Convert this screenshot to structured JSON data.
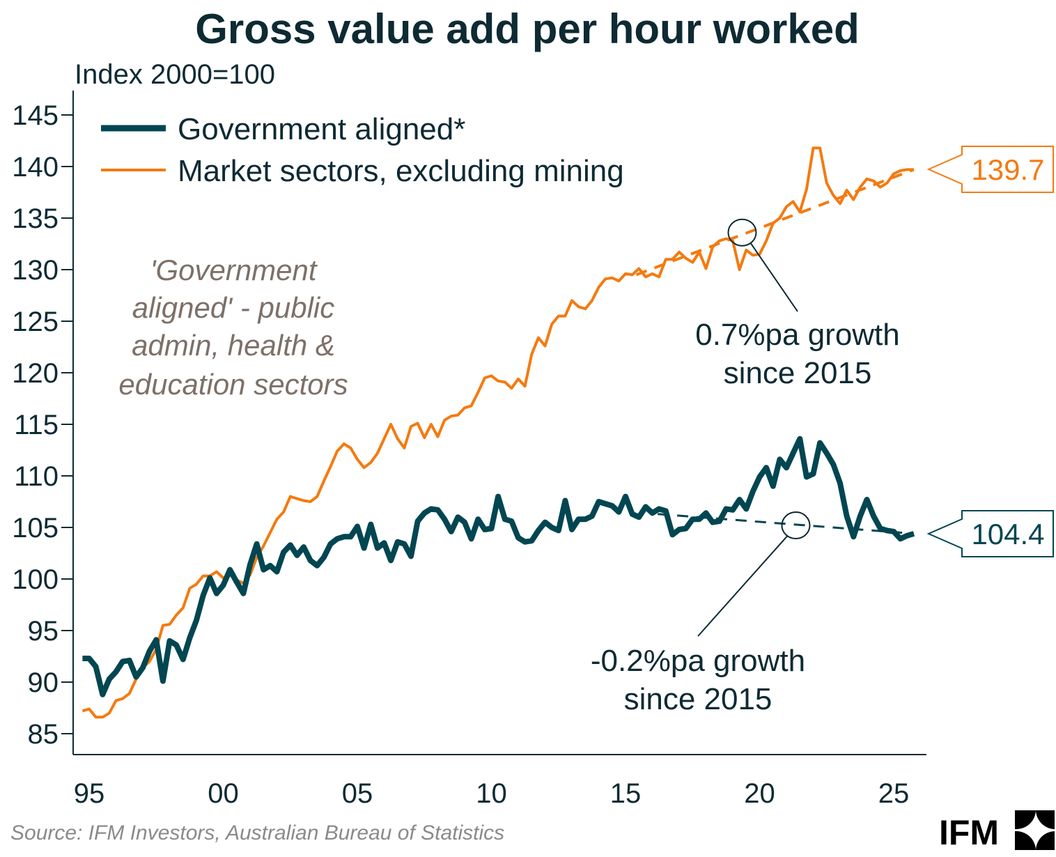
{
  "chart_data": {
    "type": "line",
    "title": "Gross value add per hour worked",
    "ylabel": "Index 2000=100",
    "ylim": [
      85,
      145
    ],
    "yticks": [
      85,
      90,
      95,
      100,
      105,
      110,
      115,
      120,
      125,
      130,
      135,
      140,
      145
    ],
    "xlim": [
      1994.5,
      2026.2
    ],
    "xticks": [
      1995,
      2000,
      2005,
      2010,
      2015,
      2020,
      2025
    ],
    "xtick_labels": [
      "95",
      "00",
      "05",
      "10",
      "15",
      "20",
      "25"
    ],
    "grid": false,
    "legend_position": "top-left",
    "colors": {
      "government": "#014651",
      "market": "#f47a10",
      "note": "#7d7068"
    },
    "x": [
      1994.75,
      1995,
      1995.25,
      1995.5,
      1995.75,
      1996,
      1996.25,
      1996.5,
      1996.75,
      1997,
      1997.25,
      1997.5,
      1997.75,
      1998,
      1998.25,
      1998.5,
      1998.75,
      1999,
      1999.25,
      1999.5,
      1999.75,
      2000,
      2000.25,
      2000.5,
      2000.75,
      2001,
      2001.25,
      2001.5,
      2001.75,
      2002,
      2002.25,
      2002.5,
      2002.75,
      2003,
      2003.25,
      2003.5,
      2003.75,
      2004,
      2004.25,
      2004.5,
      2004.75,
      2005,
      2005.25,
      2005.5,
      2005.75,
      2006,
      2006.25,
      2006.5,
      2006.75,
      2007,
      2007.25,
      2007.5,
      2007.75,
      2008,
      2008.25,
      2008.5,
      2008.75,
      2009,
      2009.25,
      2009.5,
      2009.75,
      2010,
      2010.25,
      2010.5,
      2010.75,
      2011,
      2011.25,
      2011.5,
      2011.75,
      2012,
      2012.25,
      2012.5,
      2012.75,
      2013,
      2013.25,
      2013.5,
      2013.75,
      2014,
      2014.25,
      2014.5,
      2014.75,
      2015,
      2015.25,
      2015.5,
      2015.75,
      2016,
      2016.25,
      2016.5,
      2016.75,
      2017,
      2017.25,
      2017.5,
      2017.75,
      2018,
      2018.25,
      2018.5,
      2018.75,
      2019,
      2019.25,
      2019.5,
      2019.75,
      2020,
      2020.25,
      2020.5,
      2020.75,
      2021,
      2021.25,
      2021.5,
      2021.75,
      2022,
      2022.25,
      2022.5,
      2022.75,
      2023,
      2023.25,
      2023.5,
      2023.75,
      2024,
      2024.25,
      2024.5,
      2024.75,
      2025,
      2025.25,
      2025.5,
      2025.75
    ],
    "series": [
      {
        "name": "Government aligned*",
        "key": "government",
        "values": [
          92.3,
          92.3,
          91.5,
          88.8,
          90.3,
          91.0,
          92.0,
          92.1,
          90.5,
          91.4,
          93.0,
          94.1,
          90.1,
          94.0,
          93.6,
          92.2,
          94.3,
          96.0,
          98.4,
          100.1,
          98.6,
          99.4,
          100.9,
          99.7,
          98.6,
          101.4,
          103.4,
          100.9,
          101.3,
          100.7,
          102.6,
          103.3,
          102.3,
          103.1,
          101.8,
          101.3,
          102.1,
          103.4,
          103.9,
          104.1,
          104.1,
          105.1,
          103.0,
          105.3,
          103.0,
          103.5,
          101.8,
          103.6,
          103.4,
          102.2,
          105.6,
          106.4,
          106.8,
          106.7,
          105.8,
          104.6,
          106.0,
          105.5,
          103.9,
          105.8,
          104.8,
          104.9,
          108.0,
          105.8,
          105.6,
          104.0,
          103.6,
          103.7,
          104.7,
          105.5,
          105.0,
          104.7,
          107.6,
          104.8,
          105.8,
          105.8,
          106.1,
          107.5,
          107.3,
          107.1,
          106.5,
          108.0,
          106.3,
          106.0,
          107.0,
          106.4,
          106.8,
          106.6,
          104.3,
          104.8,
          104.9,
          105.8,
          105.8,
          106.4,
          105.5,
          105.6,
          106.8,
          106.7,
          107.7,
          106.8,
          108.5,
          109.9,
          110.8,
          109.0,
          111.6,
          110.8,
          112.2,
          113.6,
          109.9,
          110.2,
          113.2,
          112.2,
          111.1,
          109.3,
          106.1,
          104.1,
          106.1,
          107.7,
          106.1,
          104.9,
          104.7,
          104.6,
          103.9,
          104.2,
          104.4
        ]
      },
      {
        "name": "Market sectors, excluding mining",
        "key": "market",
        "values": [
          87.2,
          87.4,
          86.6,
          86.6,
          87.0,
          88.2,
          88.4,
          88.9,
          90.3,
          91.4,
          92.0,
          93.2,
          95.5,
          95.6,
          96.5,
          97.2,
          99.1,
          99.5,
          100.3,
          100.3,
          100.7,
          100.1,
          100.4,
          99.9,
          99.6,
          100.4,
          102.1,
          103.2,
          104.5,
          105.8,
          106.5,
          108.0,
          107.8,
          107.6,
          107.5,
          108.0,
          109.5,
          110.9,
          112.4,
          113.1,
          112.7,
          111.6,
          110.8,
          111.3,
          112.2,
          113.6,
          115.0,
          113.6,
          112.7,
          114.8,
          115.1,
          113.7,
          115.0,
          113.8,
          115.4,
          115.8,
          115.9,
          116.6,
          116.8,
          118.1,
          119.5,
          119.7,
          119.2,
          119.1,
          118.5,
          119.4,
          118.7,
          121.8,
          123.4,
          122.6,
          124.7,
          125.5,
          125.5,
          127.0,
          126.4,
          126.2,
          127.0,
          128.3,
          129.1,
          129.2,
          128.9,
          129.6,
          129.5,
          130.1,
          129.3,
          129.6,
          129.3,
          131.0,
          131.0,
          131.7,
          131.1,
          130.7,
          131.7,
          130.1,
          132.2,
          132.8,
          133.0,
          132.8,
          130.0,
          131.9,
          131.4,
          131.5,
          132.8,
          134.5,
          135.0,
          136.1,
          136.6,
          135.6,
          137.8,
          141.8,
          141.8,
          138.4,
          137.2,
          136.4,
          137.7,
          136.8,
          138.0,
          138.8,
          138.6,
          138.0,
          138.4,
          139.3,
          139.6,
          139.7,
          139.7
        ]
      }
    ],
    "trendlines": [
      {
        "key": "market",
        "from": [
          2015.4,
          129.5
        ],
        "to": [
          2025.75,
          139.7
        ]
      },
      {
        "key": "government",
        "from": [
          2016.2,
          106.3
        ],
        "to": [
          2025.75,
          104.4
        ]
      }
    ],
    "annotation_markers": [
      {
        "key": "market",
        "at": [
          2019.35,
          133.6
        ]
      },
      {
        "key": "government",
        "at": [
          2021.35,
          105.2
        ]
      }
    ],
    "end_labels": {
      "market": "139.7",
      "government": "104.4"
    },
    "annotations": {
      "market_growth": [
        "0.7%pa growth",
        "since 2015"
      ],
      "government_growth": [
        "-0.2%pa growth",
        "since 2015"
      ],
      "definition": [
        "'Government",
        "aligned' - public",
        "admin, health &",
        "education sectors"
      ]
    }
  },
  "footer": {
    "source": "Source: IFM Investors, Australian Bureau of Statistics",
    "logo": "IFM"
  }
}
